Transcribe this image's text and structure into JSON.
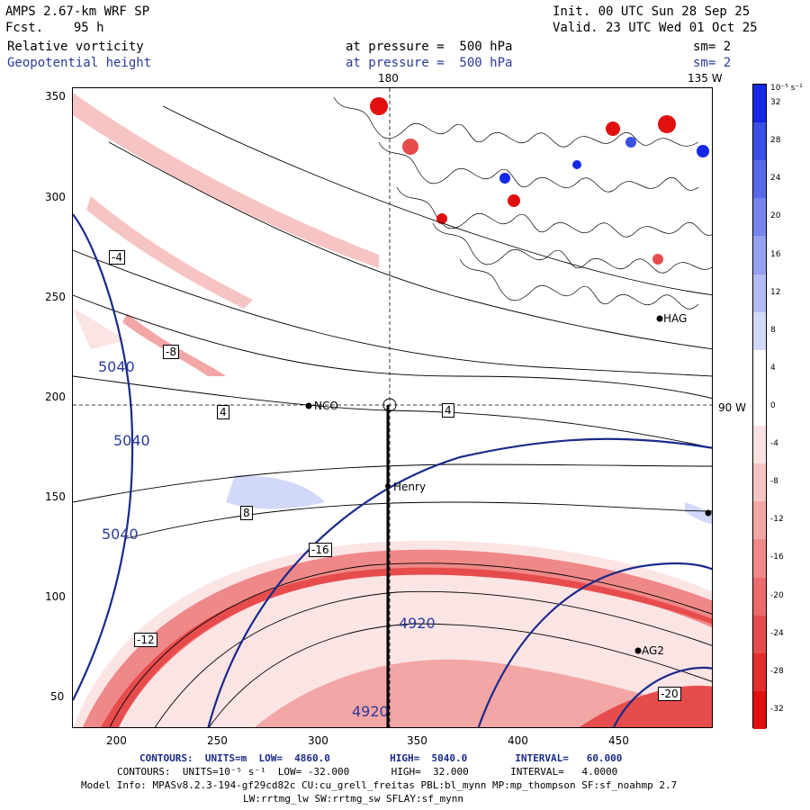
{
  "header": {
    "model": "AMPS 2.67-km WRF SP",
    "fcst": "Fcst.    95 h",
    "init": "Init. 00 UTC Sun 28 Sep 25",
    "valid": "Valid. 23 UTC Wed 01 Oct 25",
    "field1": "Relative vorticity",
    "field1_level": "at pressure =  500 hPa",
    "field1_sm": "sm= 2",
    "field2": "Geopotential height",
    "field2_level": "at pressure =  500 hPa",
    "field2_sm": "sm= 2"
  },
  "map": {
    "meridian_labels": {
      "top_180": "180",
      "top_135w": "135 W",
      "right_90w": "90 W"
    },
    "x_ticks": [
      "200",
      "250",
      "300",
      "350",
      "400",
      "450"
    ],
    "y_ticks": [
      "350",
      "300",
      "250",
      "200",
      "150",
      "100",
      "50"
    ],
    "stations": [
      {
        "id": "nco",
        "label": "NCO"
      },
      {
        "id": "henry",
        "label": "Henry"
      },
      {
        "id": "ha",
        "label": "HAG"
      },
      {
        "id": "ag2",
        "label": "AG2"
      }
    ],
    "height_labels": [
      "5040",
      "5040",
      "5040",
      "4920",
      "4920"
    ],
    "vort_labels": [
      "4",
      "-4",
      "-8",
      "-12",
      "-16",
      "8",
      "-20",
      "4"
    ]
  },
  "colorbar": {
    "units": "10⁻⁵ s⁻¹",
    "labels": [
      "32",
      "28",
      "24",
      "20",
      "16",
      "12",
      "8",
      "4",
      "0",
      "-4",
      "-8",
      "-12",
      "-16",
      "-20",
      "-24",
      "-28",
      "-32"
    ],
    "colors": [
      "#1428e6",
      "#3a4ee8",
      "#5868ea",
      "#7684ec",
      "#96a0f0",
      "#b4bcf4",
      "#d2d8f8",
      "#ffffff",
      "#ffffff",
      "#fbe2e2",
      "#f7c4c4",
      "#f3a6a6",
      "#ef8888",
      "#eb6a6a",
      "#e74c4c",
      "#e32e2e",
      "#e01010"
    ]
  },
  "footer": {
    "line1": "CONTOURS:  UNITS=m  LOW=  4860.0          HIGH=  5040.0        INTERVAL=   60.000",
    "line2": "CONTOURS:  UNITS=10⁻⁵ s⁻¹  LOW= -32.000       HIGH=  32.000       INTERVAL=   4.0000",
    "line3": "Model Info: MPASv8.2.3-194-gf29cd82c CU:cu_grell_freitas PBL:bl_mynn MP:mp_thompson SF:sf_noahmp 2.7",
    "line4": "LW:rrtmg_lw SW:rrtmg_sw SFLAY:sf_mynn"
  }
}
